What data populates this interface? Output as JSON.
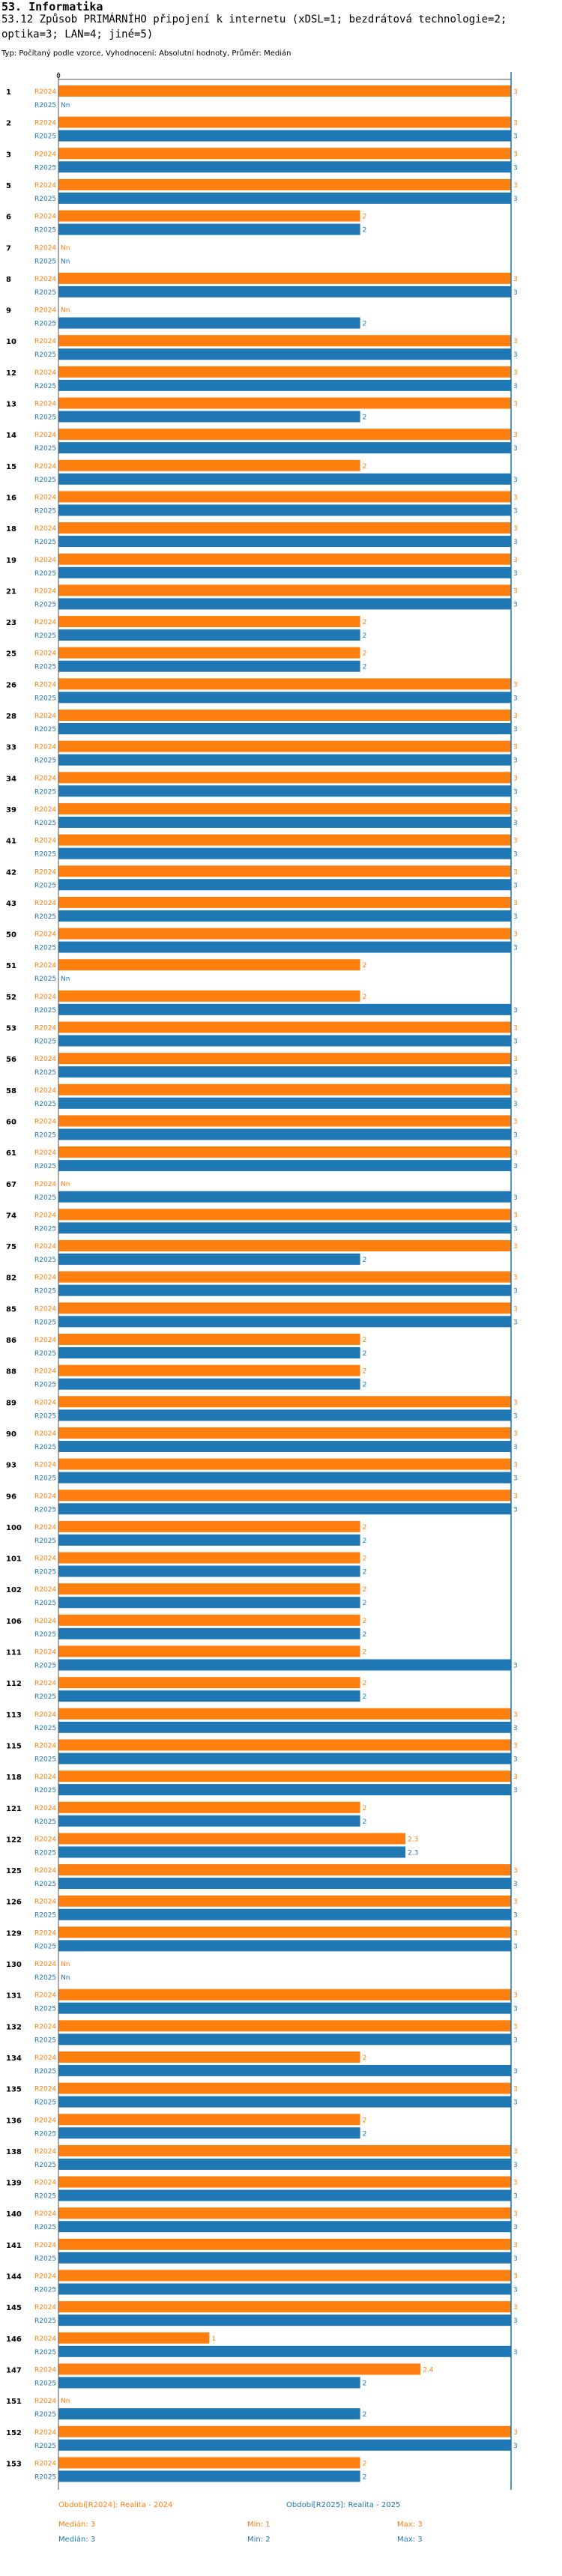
{
  "header": {
    "section": "53. Informatika",
    "question_line1": "53.12 Způsob PRIMÁRNÍHO připojení k internetu (xDSL=1; bezdrátová technologie=2;",
    "question_line2": "optika=3; LAN=4; jiné=5)",
    "subtitle": "Typ: Počítaný podle vzorce, Vyhodnocení: Absolutní hodnoty, Průměr: Medián"
  },
  "colors": {
    "r2024": "#ff7f0e",
    "r2025": "#1f77b4",
    "axis": "#1f77b4"
  },
  "chart_data": {
    "type": "bar",
    "orientation": "horizontal",
    "xlim": [
      0,
      3
    ],
    "x_tick_label": "0",
    "series_labels": [
      "R2024",
      "R2025"
    ],
    "missing_label": "Nn",
    "categories": [
      "1",
      "2",
      "3",
      "5",
      "6",
      "7",
      "8",
      "9",
      "10",
      "12",
      "13",
      "14",
      "15",
      "16",
      "18",
      "19",
      "21",
      "23",
      "25",
      "26",
      "28",
      "33",
      "34",
      "39",
      "41",
      "42",
      "43",
      "50",
      "51",
      "52",
      "53",
      "56",
      "58",
      "60",
      "61",
      "67",
      "74",
      "75",
      "82",
      "85",
      "86",
      "88",
      "89",
      "90",
      "93",
      "96",
      "100",
      "101",
      "102",
      "106",
      "111",
      "112",
      "113",
      "115",
      "118",
      "121",
      "122",
      "125",
      "126",
      "129",
      "130",
      "131",
      "132",
      "134",
      "135",
      "136",
      "138",
      "139",
      "140",
      "141",
      "144",
      "145",
      "146",
      "147",
      "151",
      "152",
      "153"
    ],
    "series": [
      {
        "name": "R2024",
        "values": [
          3,
          3,
          3,
          3,
          2,
          null,
          3,
          null,
          3,
          3,
          3,
          3,
          2,
          3,
          3,
          3,
          3,
          2,
          2,
          3,
          3,
          3,
          3,
          3,
          3,
          3,
          3,
          3,
          2,
          2,
          3,
          3,
          3,
          3,
          3,
          null,
          3,
          3,
          3,
          3,
          2,
          2,
          3,
          3,
          3,
          3,
          2,
          2,
          2,
          2,
          2,
          2,
          3,
          3,
          3,
          2,
          2.3,
          3,
          3,
          3,
          null,
          3,
          3,
          2,
          3,
          2,
          3,
          3,
          3,
          3,
          3,
          3,
          1,
          2.4,
          null,
          3,
          2
        ]
      },
      {
        "name": "R2025",
        "values": [
          null,
          3,
          3,
          3,
          2,
          null,
          3,
          2,
          3,
          3,
          2,
          3,
          3,
          3,
          3,
          3,
          3,
          2,
          2,
          3,
          3,
          3,
          3,
          3,
          3,
          3,
          3,
          3,
          null,
          3,
          3,
          3,
          3,
          3,
          3,
          3,
          3,
          2,
          3,
          3,
          2,
          2,
          3,
          3,
          3,
          3,
          2,
          2,
          2,
          2,
          3,
          2,
          3,
          3,
          3,
          2,
          2.3,
          3,
          3,
          3,
          null,
          3,
          3,
          3,
          3,
          2,
          3,
          3,
          3,
          3,
          3,
          3,
          3,
          2,
          2,
          3,
          2
        ]
      }
    ]
  },
  "legend": {
    "r2024_label": "Období[R2024]: Realita - 2024",
    "r2025_label": "Období[R2025]: Realita - 2025",
    "r2024_median": "Medián: 3",
    "r2024_min": "Min: 1",
    "r2024_max": "Max: 3",
    "r2025_median": "Medián: 3",
    "r2025_min": "Min: 2",
    "r2025_max": "Max: 3"
  }
}
